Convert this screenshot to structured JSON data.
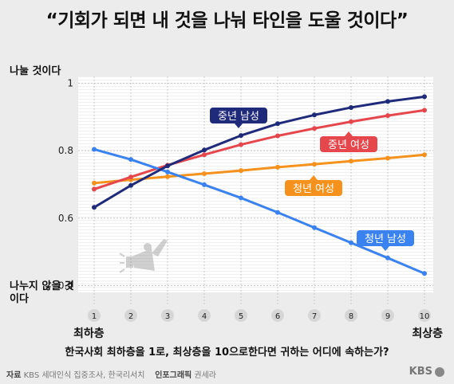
{
  "headline": "“기회가 되면 내 것을 나눠 타인을 도울 것이다”",
  "chart_data": {
    "type": "line",
    "x": [
      1,
      2,
      3,
      4,
      5,
      6,
      7,
      8,
      9,
      10
    ],
    "ylim": [
      0.38,
      1.02
    ],
    "yticks": [
      0.4,
      0.6,
      0.8,
      1
    ],
    "ytick_labels": [
      "0.4",
      "0.6",
      "0.8",
      "1"
    ],
    "y_top_label": "나눌 것이다",
    "y_bottom_label": "나누지 않을 것이다",
    "x_left_label": "최하층",
    "x_right_label": "최상층",
    "question": "한국사회 최하층을 1로, 최상층을 10으로한다면 귀하는 어디에 속하는가?",
    "grid": true,
    "series": [
      {
        "name": "중년 남성",
        "color": "#1f2a7a",
        "values": [
          0.632,
          0.697,
          0.755,
          0.802,
          0.845,
          0.88,
          0.906,
          0.928,
          0.946,
          0.96
        ]
      },
      {
        "name": "중년 여성",
        "color": "#e5474c",
        "values": [
          0.686,
          0.722,
          0.757,
          0.788,
          0.818,
          0.844,
          0.866,
          0.886,
          0.904,
          0.92
        ]
      },
      {
        "name": "청년 여성",
        "color": "#f5921e",
        "values": [
          0.704,
          0.714,
          0.723,
          0.732,
          0.741,
          0.751,
          0.76,
          0.769,
          0.778,
          0.788
        ]
      },
      {
        "name": "청년 남성",
        "color": "#3a82f0",
        "values": [
          0.804,
          0.774,
          0.737,
          0.699,
          0.66,
          0.617,
          0.572,
          0.527,
          0.482,
          0.436
        ]
      }
    ]
  },
  "footer": {
    "source_label": "자료",
    "source_text": "KBS 세대인식 집중조사, 한국리서치",
    "credit_label": "인포그래픽",
    "credit_text": "권세라"
  },
  "logo_text": "KBS"
}
